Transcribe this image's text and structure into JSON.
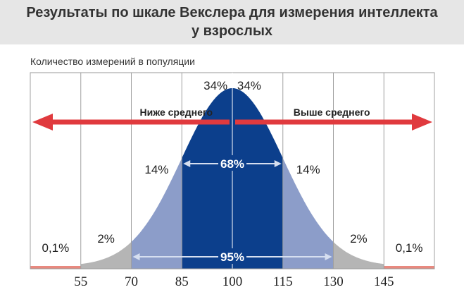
{
  "title_line1": "Результаты по шкале Векслера для измерения интеллекта",
  "title_line2": "у взрослых",
  "ylabel": "Количество измерений в популяции",
  "chart_data": {
    "type": "area",
    "distribution": "normal",
    "mean": 100,
    "sd": 15,
    "ticks": [
      "55",
      "70",
      "85",
      "100",
      "115",
      "130",
      "145"
    ],
    "tick_values": [
      55,
      70,
      85,
      100,
      115,
      130,
      145
    ],
    "xlim": [
      40,
      160
    ],
    "bands": [
      {
        "from": 40,
        "to": 55,
        "label": "0,1%",
        "color": "#e8897f"
      },
      {
        "from": 55,
        "to": 70,
        "label": "2%",
        "color": "#b5b5b5"
      },
      {
        "from": 70,
        "to": 85,
        "label": "14%",
        "color": "#8c9dc9"
      },
      {
        "from": 85,
        "to": 100,
        "label": "34%",
        "color": "#0c3f8c"
      },
      {
        "from": 100,
        "to": 115,
        "label": "34%",
        "color": "#0c3f8c"
      },
      {
        "from": 115,
        "to": 130,
        "label": "14%",
        "color": "#8c9dc9"
      },
      {
        "from": 130,
        "to": 145,
        "label": "2%",
        "color": "#b5b5b5"
      },
      {
        "from": 145,
        "to": 160,
        "label": "0,1%",
        "color": "#e8897f"
      }
    ],
    "ranges": [
      {
        "from": 85,
        "to": 115,
        "label": "68%"
      },
      {
        "from": 70,
        "to": 130,
        "label": "95%"
      }
    ],
    "arrows": [
      {
        "direction": "left",
        "label": "Ниже среднего",
        "color": "#e03a3e"
      },
      {
        "direction": "right",
        "label": "Выше среднего",
        "color": "#e03a3e"
      }
    ],
    "gridlines": [
      40,
      55,
      70,
      85,
      100,
      115,
      130,
      145,
      160
    ]
  }
}
